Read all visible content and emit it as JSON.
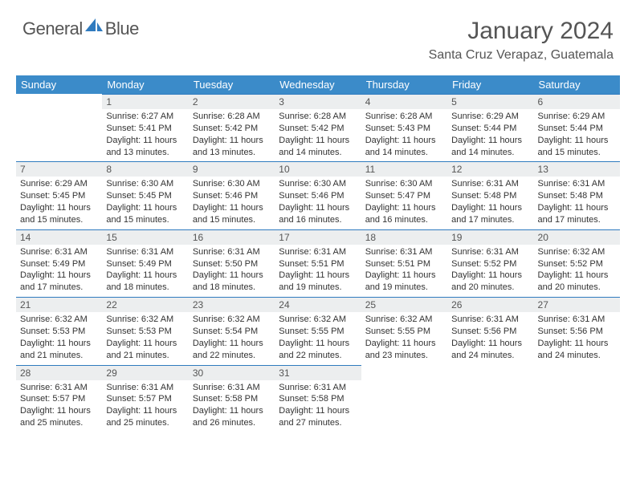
{
  "brand": {
    "part1": "General",
    "part2": "Blue"
  },
  "title": {
    "month": "January 2024",
    "location": "Santa Cruz Verapaz, Guatemala"
  },
  "colors": {
    "header_bg": "#3b8bc9",
    "accent_rule": "#2f7bbf",
    "day_bg": "#eceeef",
    "text": "#333333"
  },
  "weekdays": [
    "Sunday",
    "Monday",
    "Tuesday",
    "Wednesday",
    "Thursday",
    "Friday",
    "Saturday"
  ],
  "first_weekday_index": 1,
  "days": [
    {
      "n": 1,
      "sr": "6:27 AM",
      "ss": "5:41 PM",
      "dl": "11 hours and 13 minutes."
    },
    {
      "n": 2,
      "sr": "6:28 AM",
      "ss": "5:42 PM",
      "dl": "11 hours and 13 minutes."
    },
    {
      "n": 3,
      "sr": "6:28 AM",
      "ss": "5:42 PM",
      "dl": "11 hours and 14 minutes."
    },
    {
      "n": 4,
      "sr": "6:28 AM",
      "ss": "5:43 PM",
      "dl": "11 hours and 14 minutes."
    },
    {
      "n": 5,
      "sr": "6:29 AM",
      "ss": "5:44 PM",
      "dl": "11 hours and 14 minutes."
    },
    {
      "n": 6,
      "sr": "6:29 AM",
      "ss": "5:44 PM",
      "dl": "11 hours and 15 minutes."
    },
    {
      "n": 7,
      "sr": "6:29 AM",
      "ss": "5:45 PM",
      "dl": "11 hours and 15 minutes."
    },
    {
      "n": 8,
      "sr": "6:30 AM",
      "ss": "5:45 PM",
      "dl": "11 hours and 15 minutes."
    },
    {
      "n": 9,
      "sr": "6:30 AM",
      "ss": "5:46 PM",
      "dl": "11 hours and 15 minutes."
    },
    {
      "n": 10,
      "sr": "6:30 AM",
      "ss": "5:46 PM",
      "dl": "11 hours and 16 minutes."
    },
    {
      "n": 11,
      "sr": "6:30 AM",
      "ss": "5:47 PM",
      "dl": "11 hours and 16 minutes."
    },
    {
      "n": 12,
      "sr": "6:31 AM",
      "ss": "5:48 PM",
      "dl": "11 hours and 17 minutes."
    },
    {
      "n": 13,
      "sr": "6:31 AM",
      "ss": "5:48 PM",
      "dl": "11 hours and 17 minutes."
    },
    {
      "n": 14,
      "sr": "6:31 AM",
      "ss": "5:49 PM",
      "dl": "11 hours and 17 minutes."
    },
    {
      "n": 15,
      "sr": "6:31 AM",
      "ss": "5:49 PM",
      "dl": "11 hours and 18 minutes."
    },
    {
      "n": 16,
      "sr": "6:31 AM",
      "ss": "5:50 PM",
      "dl": "11 hours and 18 minutes."
    },
    {
      "n": 17,
      "sr": "6:31 AM",
      "ss": "5:51 PM",
      "dl": "11 hours and 19 minutes."
    },
    {
      "n": 18,
      "sr": "6:31 AM",
      "ss": "5:51 PM",
      "dl": "11 hours and 19 minutes."
    },
    {
      "n": 19,
      "sr": "6:31 AM",
      "ss": "5:52 PM",
      "dl": "11 hours and 20 minutes."
    },
    {
      "n": 20,
      "sr": "6:32 AM",
      "ss": "5:52 PM",
      "dl": "11 hours and 20 minutes."
    },
    {
      "n": 21,
      "sr": "6:32 AM",
      "ss": "5:53 PM",
      "dl": "11 hours and 21 minutes."
    },
    {
      "n": 22,
      "sr": "6:32 AM",
      "ss": "5:53 PM",
      "dl": "11 hours and 21 minutes."
    },
    {
      "n": 23,
      "sr": "6:32 AM",
      "ss": "5:54 PM",
      "dl": "11 hours and 22 minutes."
    },
    {
      "n": 24,
      "sr": "6:32 AM",
      "ss": "5:55 PM",
      "dl": "11 hours and 22 minutes."
    },
    {
      "n": 25,
      "sr": "6:32 AM",
      "ss": "5:55 PM",
      "dl": "11 hours and 23 minutes."
    },
    {
      "n": 26,
      "sr": "6:31 AM",
      "ss": "5:56 PM",
      "dl": "11 hours and 24 minutes."
    },
    {
      "n": 27,
      "sr": "6:31 AM",
      "ss": "5:56 PM",
      "dl": "11 hours and 24 minutes."
    },
    {
      "n": 28,
      "sr": "6:31 AM",
      "ss": "5:57 PM",
      "dl": "11 hours and 25 minutes."
    },
    {
      "n": 29,
      "sr": "6:31 AM",
      "ss": "5:57 PM",
      "dl": "11 hours and 25 minutes."
    },
    {
      "n": 30,
      "sr": "6:31 AM",
      "ss": "5:58 PM",
      "dl": "11 hours and 26 minutes."
    },
    {
      "n": 31,
      "sr": "6:31 AM",
      "ss": "5:58 PM",
      "dl": "11 hours and 27 minutes."
    }
  ],
  "labels": {
    "sunrise": "Sunrise:",
    "sunset": "Sunset:",
    "daylight": "Daylight:"
  }
}
